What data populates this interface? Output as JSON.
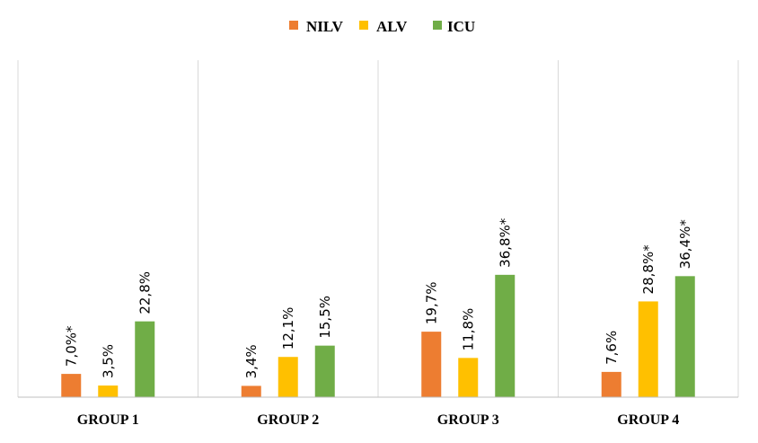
{
  "chart_data": {
    "type": "bar",
    "categories": [
      "GROUP 1",
      "GROUP 2",
      "GROUP 3",
      "GROUP 4"
    ],
    "series": [
      {
        "name": "NILV",
        "color": "#ED7D31",
        "values": [
          7.0,
          3.4,
          19.7,
          7.6
        ],
        "labels": [
          "7,0%*",
          "3,4%",
          "19,7%",
          "7,6%"
        ]
      },
      {
        "name": "ALV",
        "color": "#FFC000",
        "values": [
          3.5,
          12.1,
          11.8,
          28.8
        ],
        "labels": [
          "3,5%",
          "12,1%",
          "11,8%",
          "28,8%*"
        ]
      },
      {
        "name": "ICU",
        "color": "#70AD47",
        "values": [
          22.8,
          15.5,
          36.8,
          36.4
        ],
        "labels": [
          "22,8%",
          "15,5%",
          "36,8%*",
          "36,4%*"
        ]
      }
    ],
    "ylim": [
      0,
      64
    ],
    "legend_position": "top-center",
    "grid": false,
    "category_dividers": true
  }
}
